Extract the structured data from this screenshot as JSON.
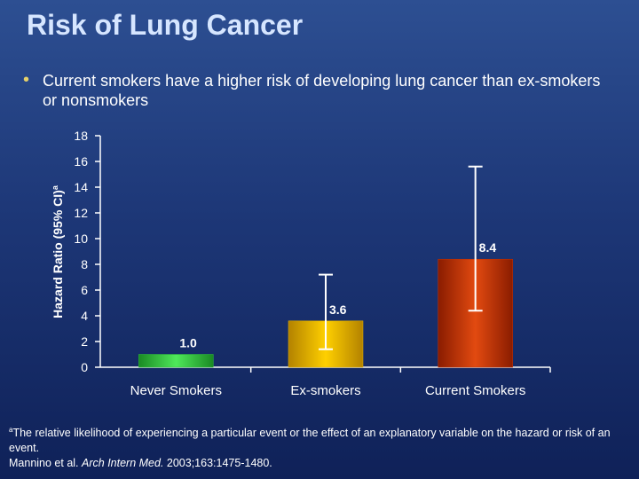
{
  "title": "Risk of Lung Cancer",
  "bullet": "Current smokers have a higher risk of developing lung cancer than ex-smokers or nonsmokers",
  "chart_data": {
    "type": "bar",
    "ylabel": "Hazard Ratio (95% CI)",
    "ylabel_superscript": "a",
    "ylim": [
      0,
      18
    ],
    "yticks": [
      0,
      2,
      4,
      6,
      8,
      10,
      12,
      14,
      16,
      18
    ],
    "categories": [
      "Never Smokers",
      "Ex-smokers",
      "Current Smokers"
    ],
    "values": [
      1.0,
      3.6,
      8.4
    ],
    "value_labels": [
      "1.0",
      "3.6",
      "8.4"
    ],
    "ci_lower": [
      null,
      1.4,
      4.4
    ],
    "ci_upper": [
      null,
      7.2,
      15.6
    ],
    "colors": [
      "#2fc23a",
      "#e8b400",
      "#c83000"
    ]
  },
  "footnote": {
    "marker": "a",
    "text": "The relative likelihood of experiencing a particular event or the effect of an explanatory variable on the hazard or risk of an event.",
    "citation_authors": "Mannino et al.",
    "citation_journal": "Arch Intern Med.",
    "citation_details": "2003;163:1475-1480."
  }
}
